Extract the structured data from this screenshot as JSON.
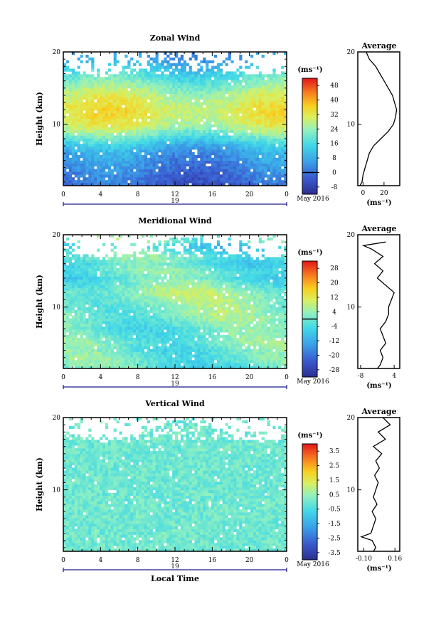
{
  "figure": {
    "date_label": "May 2016",
    "day_label": "19",
    "xlabel": "Local Time",
    "xticks": [
      "0",
      "4",
      "8",
      "12",
      "16",
      "20",
      "0"
    ],
    "unit": "(ms⁻¹)",
    "ylabel": "Height (km)",
    "avg_title": "Average"
  },
  "chart_data": [
    {
      "type": "heatmap",
      "title": "Zonal Wind",
      "ylabel": "Height (km)",
      "xlabel": "Local Time",
      "x_range_hours": [
        0,
        24
      ],
      "y_range_km": [
        1.5,
        20
      ],
      "yticks": [
        "10",
        "20"
      ],
      "colorbar": {
        "label": "(ms⁻¹)",
        "ticks": [
          "48",
          "40",
          "32",
          "24",
          "16",
          "8",
          "0",
          "-8"
        ],
        "min": -12,
        "max": 52,
        "contour_level": 0
      },
      "profile": {
        "title": "Average",
        "xticks": [
          "0",
          "20"
        ],
        "xlim": [
          -5,
          35
        ],
        "height_km": [
          1.5,
          2,
          3,
          4,
          5,
          6,
          7,
          8,
          9,
          10,
          11,
          12,
          13,
          14,
          15,
          16,
          17,
          18,
          19,
          20
        ],
        "values": [
          -3,
          -1,
          0,
          2,
          4,
          6,
          10,
          17,
          24,
          29,
          31,
          32,
          30,
          28,
          24,
          20,
          16,
          12,
          6,
          3
        ]
      }
    },
    {
      "type": "heatmap",
      "title": "Meridional Wind",
      "ylabel": "Height (km)",
      "xlabel": "Local Time",
      "x_range_hours": [
        0,
        24
      ],
      "y_range_km": [
        1.5,
        20
      ],
      "yticks": [
        "10",
        "20"
      ],
      "colorbar": {
        "label": "(ms⁻¹)",
        "ticks": [
          "28",
          "20",
          "12",
          "4",
          "-4",
          "-12",
          "-20",
          "-28"
        ],
        "min": -32,
        "max": 32,
        "contour_level": 0
      },
      "profile": {
        "title": "Average",
        "xticks": [
          "-8",
          "4"
        ],
        "xlim": [
          -9,
          6
        ],
        "height_km": [
          1.5,
          2,
          3,
          4,
          5,
          6,
          7,
          8,
          9,
          10,
          11,
          12,
          13,
          14,
          15,
          16,
          17,
          18,
          18.5,
          19
        ],
        "values": [
          -2,
          -1,
          0,
          -1,
          1,
          0,
          -1,
          1,
          2,
          2,
          3,
          4,
          1,
          -2,
          0,
          -3,
          0,
          -4,
          -7,
          1
        ]
      }
    },
    {
      "type": "heatmap",
      "title": "Vertical Wind",
      "ylabel": "Height (km)",
      "xlabel": "Local Time",
      "x_range_hours": [
        0,
        24
      ],
      "y_range_km": [
        1.5,
        20
      ],
      "yticks": [
        "10",
        "20"
      ],
      "colorbar": {
        "label": "(ms⁻¹)",
        "ticks": [
          "3.5",
          "2.5",
          "1.5",
          "0.5",
          "-0.5",
          "-1.5",
          "-2.5",
          "-3.5"
        ],
        "min": -4,
        "max": 4
      },
      "profile": {
        "title": "Average",
        "xticks": [
          "-0.10",
          "0.16"
        ],
        "xlim": [
          -0.15,
          0.2
        ],
        "height_km": [
          1.5,
          2,
          3,
          3.5,
          4,
          5,
          6,
          7,
          8,
          9,
          10,
          11,
          12,
          13,
          14,
          15,
          16,
          17,
          18,
          19,
          20
        ],
        "values": [
          -0.02,
          0.0,
          -0.03,
          -0.12,
          -0.04,
          -0.02,
          0.0,
          -0.03,
          0.01,
          -0.02,
          0.0,
          0.02,
          -0.01,
          0.03,
          0.0,
          0.05,
          -0.02,
          0.08,
          0.02,
          0.12,
          0.06
        ]
      }
    }
  ]
}
